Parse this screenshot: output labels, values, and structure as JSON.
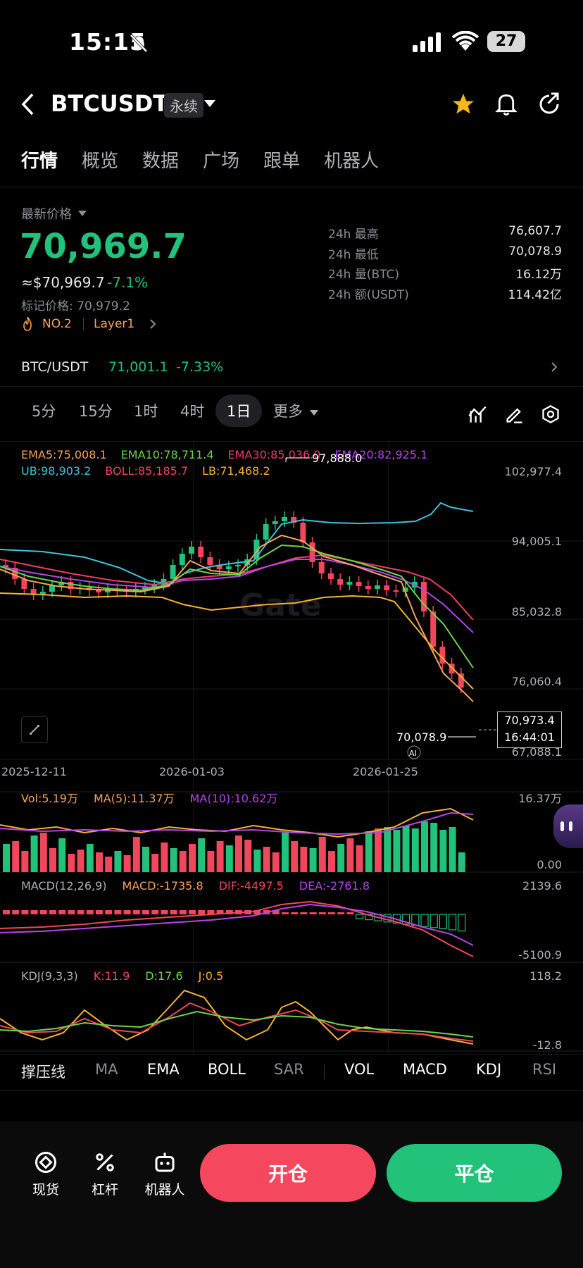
{
  "status": {
    "time": "15:15",
    "battery": "27"
  },
  "header": {
    "title": "BTCUSDT",
    "badge": "永续"
  },
  "tabs": [
    {
      "label": "行情"
    },
    {
      "label": "概览"
    },
    {
      "label": "数据"
    },
    {
      "label": "广场"
    },
    {
      "label": "跟单"
    },
    {
      "label": "机器人"
    }
  ],
  "price": {
    "label": "最新价格",
    "last": "70,969.7",
    "usd": "≈$70,969.7",
    "change": "-7.1%",
    "mark": "标记价格: 70,979.2",
    "rank": "NO.2",
    "tag": "Layer1"
  },
  "stats": [
    {
      "label": "24h  最高",
      "value": "76,607.7"
    },
    {
      "label": "24h  最低",
      "value": "70,078.9"
    },
    {
      "label": "24h  量(BTC)",
      "value": "16.12万"
    },
    {
      "label": "24h  额(USDT)",
      "value": "114.42亿"
    }
  ],
  "spot": {
    "pair": "BTC/USDT",
    "price": "71,001.1",
    "change": "-7.33%"
  },
  "timeframes": [
    {
      "label": "5分"
    },
    {
      "label": "15分"
    },
    {
      "label": "1时"
    },
    {
      "label": "4时"
    },
    {
      "label": "1日"
    },
    {
      "label": "更多"
    }
  ],
  "legend1": {
    "ema5": "EMA5:75,008.1",
    "ema10": "EMA10:78,711.4",
    "ema30": "EMA30:85,036.0",
    "ema20": "EMA20:82,925.1"
  },
  "legend2": {
    "ub": "UB:98,903.2",
    "boll": "BOLL:85,185.7",
    "lb": "LB:71,468.2"
  },
  "yaxis": [
    "102,977.4",
    "94,005.1",
    "85,032.8",
    "76,060.4",
    "67,088.1"
  ],
  "annotations": {
    "high": "97,888.0",
    "low": "70,078.9",
    "current_price": "70,973.4",
    "countdown": "16:44:01",
    "ai": "AI"
  },
  "dates": [
    "2025-12-11",
    "2026-01-03",
    "2026-01-25"
  ],
  "vol": {
    "vol": "Vol:5.19万",
    "ma5": "MA(5):11.37万",
    "ma10": "MA(10):10.62万",
    "max": "16.37万",
    "min": "0.00"
  },
  "macd": {
    "title": "MACD(12,26,9)",
    "macd": "MACD:-1735.8",
    "dif": "DIF:-4497.5",
    "dea": "DEA:-2761.8",
    "max": "2139.6",
    "min": "-5100.9"
  },
  "kdj": {
    "title": "KDJ(9,3,3)",
    "k": "K:11.9",
    "d": "D:17.6",
    "j": "J:0.5",
    "max": "118.2",
    "min": "-12.8"
  },
  "indicators": [
    {
      "label": "撑压线"
    },
    {
      "label": "MA"
    },
    {
      "label": "EMA"
    },
    {
      "label": "BOLL"
    },
    {
      "label": "SAR"
    },
    {
      "label": "VOL"
    },
    {
      "label": "MACD"
    },
    {
      "label": "KDJ"
    },
    {
      "label": "RSI"
    }
  ],
  "bottom": {
    "spot": "现货",
    "leverage": "杠杆",
    "bot": "机器人",
    "open": "开仓",
    "close": "平仓"
  },
  "colors": {
    "up": "#22c27a",
    "down": "#f0475c",
    "ema5": "#f5a35c",
    "ema10": "#6bd64b",
    "ema30": "#ee3d6a",
    "ema20": "#b546e6",
    "ub": "#3fc3d8",
    "lb": "#f2b233"
  }
}
